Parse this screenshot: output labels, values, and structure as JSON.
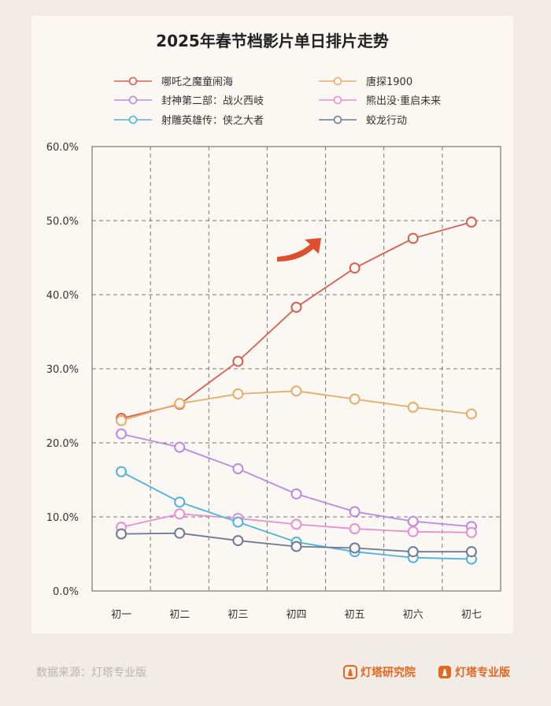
{
  "colors": {
    "background": "#f1ece6",
    "card": "#fbf7f3",
    "grid": "#777777",
    "brand": "#e4661f"
  },
  "chart_data": {
    "type": "line",
    "title": "2025年春节档影片单日排片走势",
    "categories": [
      "初一",
      "初二",
      "初三",
      "初四",
      "初五",
      "初六",
      "初七"
    ],
    "ylim": [
      0,
      60
    ],
    "yticks": [
      0,
      10,
      20,
      30,
      40,
      50,
      60
    ],
    "ytick_labels": [
      "0.0%",
      "10.0%",
      "20.0%",
      "30.0%",
      "40.0%",
      "50.0%",
      "60.0%"
    ],
    "grid": true,
    "legend_position": "top",
    "series": [
      {
        "name": "哪吒之魔童闹海",
        "color": "#d9604f",
        "values": [
          23.3,
          25.2,
          31.0,
          38.3,
          43.6,
          47.6,
          49.8
        ]
      },
      {
        "name": "唐探1900",
        "color": "#e7ad68",
        "values": [
          23.0,
          25.3,
          26.6,
          27.0,
          25.9,
          24.8,
          23.9
        ]
      },
      {
        "name": "封神第二部：战火西岐",
        "color": "#b98ae3",
        "values": [
          21.2,
          19.4,
          16.5,
          13.1,
          10.7,
          9.4,
          8.7
        ]
      },
      {
        "name": "熊出没·重启未来",
        "color": "#e68fd2",
        "values": [
          8.6,
          10.4,
          9.8,
          9.0,
          8.4,
          8.0,
          7.9
        ]
      },
      {
        "name": "射雕英雄传：侠之大者",
        "color": "#4db3dc",
        "values": [
          16.1,
          12.0,
          9.3,
          6.6,
          5.3,
          4.5,
          4.3
        ]
      },
      {
        "name": "蛟龙行动",
        "color": "#6e7a93",
        "values": [
          7.7,
          7.8,
          6.8,
          6.0,
          5.8,
          5.3,
          5.3
        ]
      }
    ],
    "annotation": "trend-up-arrow"
  },
  "footer": {
    "source": "数据来源：灯塔专业版",
    "brand_left": "灯塔研究院",
    "brand_right": "灯塔专业版",
    "brand_icon": "lighthouse-icon"
  }
}
